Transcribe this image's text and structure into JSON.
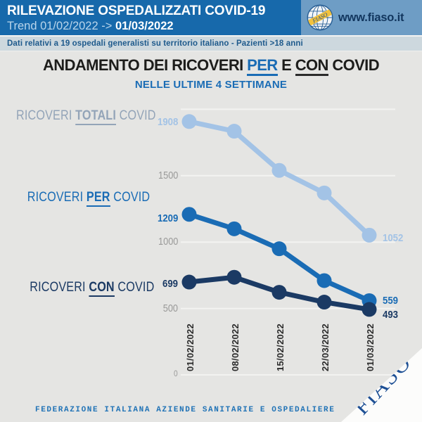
{
  "header": {
    "title": "RILEVAZIONE OSPEDALIZZATI COVID-19",
    "trend_prefix": "Trend 01/02/2022 -> ",
    "trend_value": "01/03/2022",
    "website": "www.fiaso.it",
    "logo_text": "FIASO"
  },
  "subheader": "Dati relativi a 19 ospedali generalisti su territorio italiano - Pazienti >18 anni",
  "title": {
    "segment1": "ANDAMENTO DEI RICOVERI",
    "keyword1": "PER",
    "segment2": "E",
    "keyword2": "CON",
    "segment3": "COVID",
    "subtitle": "NELLE ULTIME 4 SETTIMANE"
  },
  "chart_data": {
    "type": "line",
    "x": [
      "01/02/2022",
      "08/02/2022",
      "15/02/2022",
      "22/03/2022",
      "01/03/2022"
    ],
    "ylim": [
      0,
      2100
    ],
    "grid": true,
    "gridlines": [
      {
        "value": 0,
        "label": "0"
      },
      {
        "value": 500,
        "label": "500"
      },
      {
        "value": 1000,
        "label": "1000"
      },
      {
        "value": 1500,
        "label": "1500"
      },
      {
        "value": 2000,
        "label": ""
      }
    ],
    "series": [
      {
        "name": "RICOVERI TOTALI COVID",
        "label_prefix": "RICOVERI",
        "label_keyword": "TOTALI",
        "label_suffix": "COVID",
        "values": [
          1908,
          1835,
          1540,
          1370,
          1052
        ],
        "first_point_label": "1908",
        "last_point_label": "1052",
        "color": "#a3c3e6",
        "name_color": "#93a4b8"
      },
      {
        "name": "RICOVERI PER COVID",
        "label_prefix": "RICOVERI",
        "label_keyword": "PER",
        "label_suffix": "COVID",
        "values": [
          1209,
          1100,
          950,
          710,
          559
        ],
        "first_point_label": "1209",
        "last_point_label": "559",
        "color": "#1a6cb5",
        "name_color": "#1a6cb5"
      },
      {
        "name": "RICOVERI CON COVID",
        "label_prefix": "RICOVERI",
        "label_keyword": "CON",
        "label_suffix": "COVID",
        "values": [
          699,
          735,
          622,
          548,
          493
        ],
        "first_point_label": "699",
        "last_point_label": "493",
        "color": "#1b3a64",
        "name_color": "#1b3a64"
      }
    ]
  },
  "footer": {
    "text": "FEDERAZIONE ITALIANA AZIENDE SANITARIE E OSPEDALIERE",
    "logo_text": "FIASO"
  },
  "colors": {
    "accent_blue": "#1a6cb5",
    "navy": "#1b3a64",
    "light_blue": "#a3c3e6",
    "header_bg": "#1769ab",
    "header_box_bg": "#6e9dc5",
    "subheader_bg": "#cdd8de",
    "background": "#e5e5e3",
    "gridline": "#f3f3f1"
  }
}
